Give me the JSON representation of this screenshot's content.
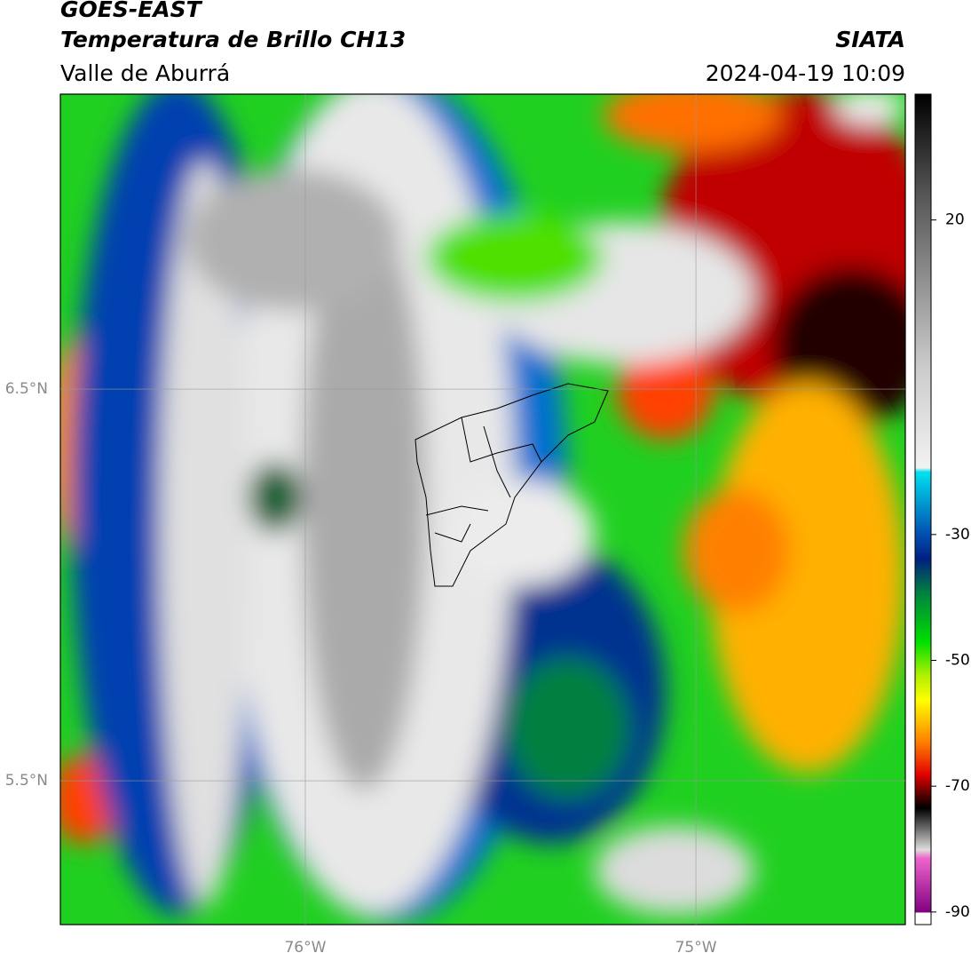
{
  "header": {
    "title": "GOES-EAST",
    "subtitle": "Temperatura de Brillo CH13",
    "region": "Valle de Aburrá",
    "source": "SIATA",
    "datetime": "2024-04-19 10:09"
  },
  "map": {
    "lonlim": [
      -76.627,
      -74.464
    ],
    "latlim": [
      5.133,
      7.253
    ],
    "lon_ticks": [
      {
        "value": -76,
        "label": "76°W"
      },
      {
        "value": -75,
        "label": "75°W"
      }
    ],
    "lat_ticks": [
      {
        "value": 6.5,
        "label": "6.5°N"
      },
      {
        "value": 5.5,
        "label": "5.5°N"
      }
    ],
    "grid": true,
    "colorbar": {
      "lim": [
        -92,
        40
      ],
      "ticks": [
        20,
        -30,
        -50,
        -70,
        -90
      ]
    }
  }
}
